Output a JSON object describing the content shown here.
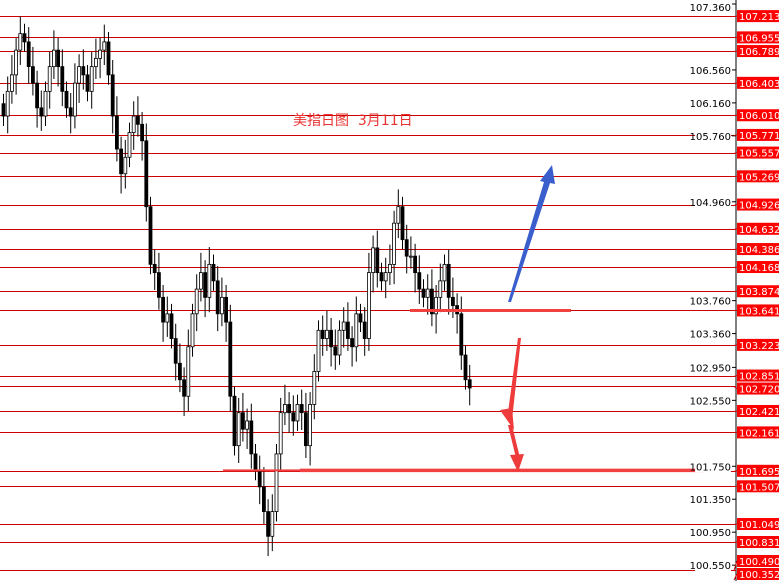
{
  "chart_data": {
    "type": "candlestick",
    "title": "美指日图  3月11日",
    "ylim": [
      100.3,
      107.41
    ],
    "y_ticks": [
      "107.360",
      "106.560",
      "106.160",
      "105.760",
      "104.960",
      "103.760",
      "103.360",
      "102.950",
      "102.550",
      "101.750",
      "101.350",
      "100.950",
      "100.550"
    ],
    "levels": [
      "107.213",
      "106.955",
      "106.789",
      "106.403",
      "106.010",
      "105.771",
      "105.557",
      "105.269",
      "104.926",
      "104.632",
      "104.386",
      "104.168",
      "103.874",
      "103.641",
      "103.223",
      "102.851",
      "102.720",
      "102.421",
      "102.161",
      "101.695",
      "101.507",
      "101.049",
      "100.831",
      "100.490",
      "100.352"
    ],
    "close": [
      106.0,
      106.3,
      106.5,
      106.8,
      107.0,
      106.9,
      106.6,
      106.4,
      106.1,
      106.0,
      106.3,
      106.6,
      106.8,
      106.6,
      106.3,
      106.1,
      106.0,
      106.4,
      106.6,
      106.5,
      106.3,
      106.6,
      106.7,
      106.8,
      106.9,
      106.5,
      106.0,
      105.6,
      105.3,
      105.5,
      105.8,
      106.0,
      105.9,
      105.7,
      104.9,
      104.2,
      104.1,
      103.8,
      103.5,
      103.6,
      103.3,
      103.0,
      102.8,
      102.6,
      103.2,
      103.6,
      103.9,
      104.1,
      103.8,
      104.2,
      104.0,
      103.6,
      103.8,
      103.5,
      102.6,
      102.0,
      102.4,
      102.2,
      102.3,
      101.9,
      101.7,
      101.5,
      101.2,
      100.9,
      101.2,
      101.9,
      102.4,
      102.5,
      102.4,
      102.3,
      102.5,
      102.4,
      102.0,
      102.5,
      102.9,
      103.4,
      103.3,
      103.4,
      103.2,
      103.1,
      103.4,
      103.5,
      103.3,
      103.2,
      103.6,
      103.5,
      103.3,
      104.1,
      104.4,
      104.1,
      104.0,
      104.1,
      104.2,
      104.7,
      104.9,
      104.5,
      104.3,
      104.3,
      104.1,
      103.9,
      103.8,
      103.9,
      103.6,
      103.8,
      104.0,
      104.2,
      103.8,
      103.7,
      103.6,
      103.1,
      102.8,
      102.7
    ],
    "support_lines": [
      103.64,
      101.7
    ],
    "annotations": {
      "up_arrow_color": "#3a5fcd",
      "down_arrow_color": "#ee3b3b"
    },
    "colors": {
      "level_line": "#cc0000",
      "label_bg": "#ff0000",
      "candle": "#000000"
    }
  }
}
